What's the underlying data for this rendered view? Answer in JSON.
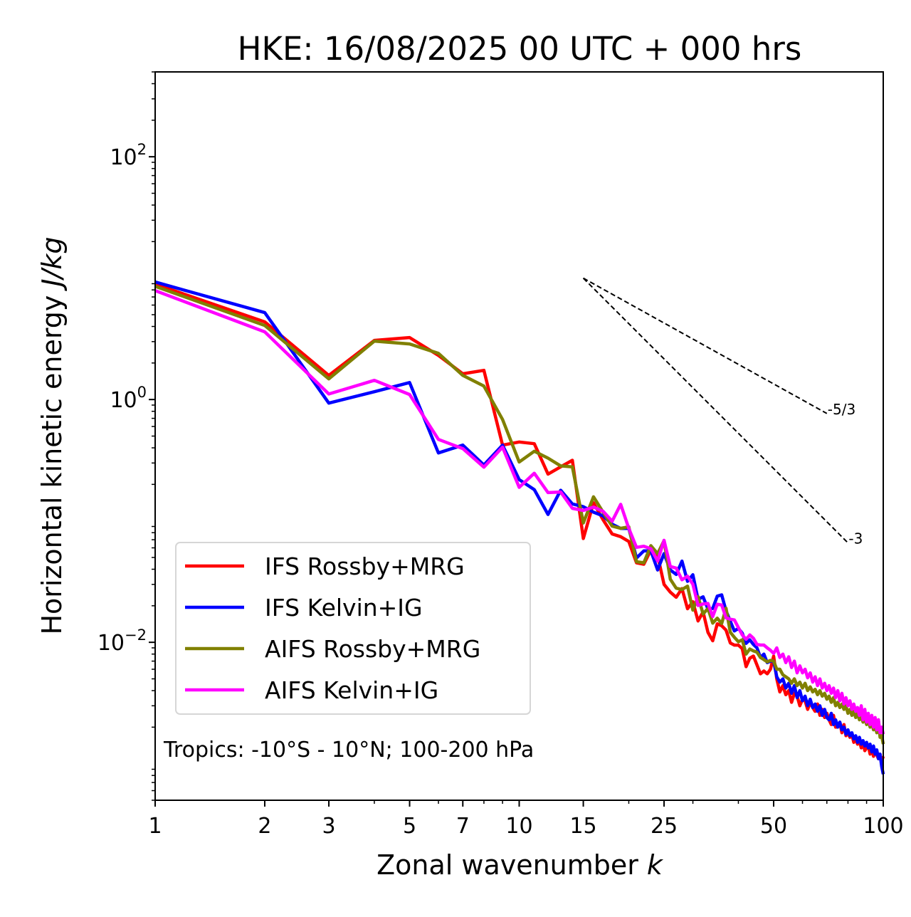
{
  "chart_data": {
    "type": "line",
    "title": "HKE: 16/08/2025 00 UTC + 000 hrs",
    "xlabel": "Zonal wavenumber",
    "xlabel_italic": "k",
    "ylabel": "Horizontal kinetic energy",
    "ylabel_italic": "J/kg",
    "xscale": "log",
    "yscale": "log",
    "xlim": [
      1,
      100
    ],
    "ylim": [
      0.0005,
      500
    ],
    "x_ticks": [
      {
        "value": 1,
        "label": "1"
      },
      {
        "value": 2,
        "label": "2"
      },
      {
        "value": 3,
        "label": "3"
      },
      {
        "value": 5,
        "label": "5"
      },
      {
        "value": 7,
        "label": "7"
      },
      {
        "value": 10,
        "label": "10"
      },
      {
        "value": 15,
        "label": "15"
      },
      {
        "value": 25,
        "label": "25"
      },
      {
        "value": 50,
        "label": "50"
      },
      {
        "value": 100,
        "label": "100"
      }
    ],
    "x_minor_ticks": [
      4,
      6,
      8,
      9,
      20,
      30,
      40,
      60,
      70,
      80,
      90
    ],
    "y_ticks": [
      {
        "value": 100,
        "base": "10",
        "exp": "2"
      },
      {
        "value": 1,
        "base": "10",
        "exp": "0"
      },
      {
        "value": 0.01,
        "base": "10",
        "exp": "−2"
      }
    ],
    "grid": false,
    "legend_position": "lower-left",
    "annotation": "Tropics: -10°S - 10°N; 100-200 hPa",
    "reference_lines": [
      {
        "label": "-5/3",
        "slope": -1.6667,
        "k_start": 15,
        "k_end": 70,
        "e_start": 10
      },
      {
        "label": "-3",
        "slope": -3,
        "k_start": 15,
        "k_end": 80,
        "e_start": 10
      }
    ],
    "x": [
      1,
      2,
      3,
      4,
      5,
      6,
      7,
      8,
      9,
      10,
      11,
      12,
      13,
      14,
      15,
      16,
      17,
      18,
      19,
      20,
      21,
      22,
      23,
      24,
      25,
      26,
      27,
      28,
      29,
      30,
      31,
      32,
      33,
      34,
      35,
      36,
      37,
      38,
      39,
      40,
      41,
      42,
      43,
      44,
      45,
      46,
      47,
      48,
      49,
      50,
      51,
      52,
      53,
      54,
      55,
      56,
      57,
      58,
      59,
      60,
      61,
      62,
      63,
      64,
      65,
      66,
      67,
      68,
      69,
      70,
      71,
      72,
      73,
      74,
      75,
      76,
      77,
      78,
      79,
      80,
      81,
      82,
      83,
      84,
      85,
      86,
      87,
      88,
      89,
      90,
      91,
      92,
      93,
      94,
      95,
      96,
      97,
      98,
      99,
      100
    ],
    "series": [
      {
        "name": "IFS Rossby+MRG",
        "color": "#ff0000",
        "values": [
          8.92,
          4.36,
          1.58,
          3.07,
          3.24,
          2.31,
          1.63,
          1.74,
          0.421,
          0.447,
          0.433,
          0.243,
          0.279,
          0.316,
          0.0716,
          0.141,
          0.102,
          0.0781,
          0.0742,
          0.0677,
          0.0452,
          0.044,
          0.0577,
          0.0518,
          0.03,
          0.0259,
          0.0235,
          0.0277,
          0.0189,
          0.0216,
          0.015,
          0.0178,
          0.0121,
          0.0103,
          0.0142,
          0.0137,
          0.0126,
          0.00988,
          0.00949,
          0.00949,
          0.00886,
          0.0063,
          0.0074,
          0.0077,
          0.0065,
          0.0055,
          0.0058,
          0.0055,
          0.006,
          0.0077,
          0.005,
          0.0039,
          0.0044,
          0.0037,
          0.004,
          0.0032,
          0.0038,
          0.0036,
          0.003,
          0.0034,
          0.0033,
          0.0028,
          0.0032,
          0.0029,
          0.0027,
          0.0031,
          0.0025,
          0.0028,
          0.0024,
          0.0026,
          0.0023,
          0.0021,
          0.0025,
          0.002,
          0.002,
          0.0022,
          0.0018,
          0.0021,
          0.0017,
          0.0018,
          0.00165,
          0.00175,
          0.0015,
          0.0016,
          0.00145,
          0.00155,
          0.00135,
          0.0015,
          0.00128,
          0.00135,
          0.0014,
          0.0012,
          0.0013,
          0.00115,
          0.00125,
          0.00118,
          0.0011,
          0.0012,
          0.00105,
          0.00115
        ]
      },
      {
        "name": "IFS Kelvin+IG",
        "color": "#0000ff",
        "values": [
          9.29,
          5.2,
          0.935,
          1.16,
          1.38,
          0.363,
          0.421,
          0.289,
          0.421,
          0.219,
          0.181,
          0.113,
          0.179,
          0.138,
          0.131,
          0.118,
          0.11,
          0.0941,
          0.0867,
          0.0867,
          0.0495,
          0.0567,
          0.0567,
          0.0394,
          0.0538,
          0.0395,
          0.0362,
          0.0467,
          0.0318,
          0.036,
          0.0226,
          0.0237,
          0.0188,
          0.019,
          0.024,
          0.0246,
          0.0182,
          0.0149,
          0.0124,
          0.013,
          0.0119,
          0.0098,
          0.0105,
          0.0096,
          0.009,
          0.0075,
          0.008,
          0.0068,
          0.007,
          0.007,
          0.0052,
          0.0047,
          0.005,
          0.0042,
          0.0046,
          0.0038,
          0.0044,
          0.0035,
          0.004,
          0.0033,
          0.0036,
          0.003,
          0.0034,
          0.0029,
          0.0031,
          0.0027,
          0.003,
          0.0025,
          0.0028,
          0.0024,
          0.0023,
          0.0026,
          0.0021,
          0.0023,
          0.002,
          0.0022,
          0.0019,
          0.002,
          0.00175,
          0.0019,
          0.0017,
          0.0018,
          0.0016,
          0.0017,
          0.0015,
          0.00165,
          0.00145,
          0.00155,
          0.0014,
          0.0015,
          0.00135,
          0.00145,
          0.00125,
          0.0014,
          0.0012,
          0.0013,
          0.0011,
          0.0012,
          0.00095,
          0.00082
        ]
      },
      {
        "name": "AIFS Rossby+MRG",
        "color": "#808000",
        "values": [
          8.57,
          4.08,
          1.48,
          3.03,
          2.87,
          2.4,
          1.58,
          1.29,
          0.685,
          0.306,
          0.375,
          0.329,
          0.284,
          0.279,
          0.0961,
          0.158,
          0.118,
          0.0906,
          0.0869,
          0.0894,
          0.0461,
          0.0452,
          0.0626,
          0.0537,
          0.0688,
          0.0331,
          0.0279,
          0.0272,
          0.029,
          0.0184,
          0.0238,
          0.0171,
          0.019,
          0.0144,
          0.0158,
          0.0143,
          0.0191,
          0.0121,
          0.011,
          0.0101,
          0.0105,
          0.008,
          0.0088,
          0.0085,
          0.0083,
          0.0075,
          0.0072,
          0.0069,
          0.0071,
          0.007,
          0.006,
          0.006,
          0.0054,
          0.0052,
          0.005,
          0.0046,
          0.005,
          0.0044,
          0.0047,
          0.0042,
          0.0046,
          0.004,
          0.0043,
          0.0039,
          0.0041,
          0.0037,
          0.004,
          0.0036,
          0.0038,
          0.0034,
          0.0036,
          0.0032,
          0.0035,
          0.003,
          0.0032,
          0.0029,
          0.0031,
          0.0028,
          0.003,
          0.0026,
          0.0028,
          0.0025,
          0.0027,
          0.0024,
          0.0026,
          0.0023,
          0.00245,
          0.0022,
          0.0024,
          0.0021,
          0.0023,
          0.002,
          0.0022,
          0.0019,
          0.0021,
          0.0018,
          0.0023,
          0.00165,
          0.0017,
          0.00145
        ]
      },
      {
        "name": "AIFS Kelvin+IG",
        "color": "#ff00ff",
        "values": [
          7.89,
          3.61,
          1.11,
          1.44,
          1.1,
          0.469,
          0.394,
          0.277,
          0.405,
          0.189,
          0.247,
          0.171,
          0.173,
          0.127,
          0.122,
          0.13,
          0.12,
          0.0994,
          0.137,
          0.0867,
          0.0606,
          0.0619,
          0.059,
          0.0468,
          0.0692,
          0.0421,
          0.0409,
          0.0327,
          0.0351,
          0.0301,
          0.0201,
          0.0207,
          0.0209,
          0.0163,
          0.0206,
          0.0203,
          0.0159,
          0.0155,
          0.0153,
          0.0132,
          0.0115,
          0.0106,
          0.0115,
          0.0108,
          0.0096,
          0.0095,
          0.0095,
          0.009,
          0.0086,
          0.0081,
          0.009,
          0.0075,
          0.008,
          0.0068,
          0.0076,
          0.0062,
          0.007,
          0.0056,
          0.0064,
          0.0056,
          0.006,
          0.0051,
          0.0056,
          0.0047,
          0.0052,
          0.0044,
          0.005,
          0.0042,
          0.0046,
          0.004,
          0.0044,
          0.0038,
          0.0042,
          0.0035,
          0.004,
          0.0033,
          0.0038,
          0.0031,
          0.0035,
          0.003,
          0.0033,
          0.0028,
          0.0031,
          0.0027,
          0.0029,
          0.0025,
          0.003,
          0.0023,
          0.0028,
          0.0022,
          0.0026,
          0.0021,
          0.0025,
          0.002,
          0.0024,
          0.0019,
          0.0023,
          0.0018,
          0.002,
          0.00175
        ]
      }
    ]
  }
}
